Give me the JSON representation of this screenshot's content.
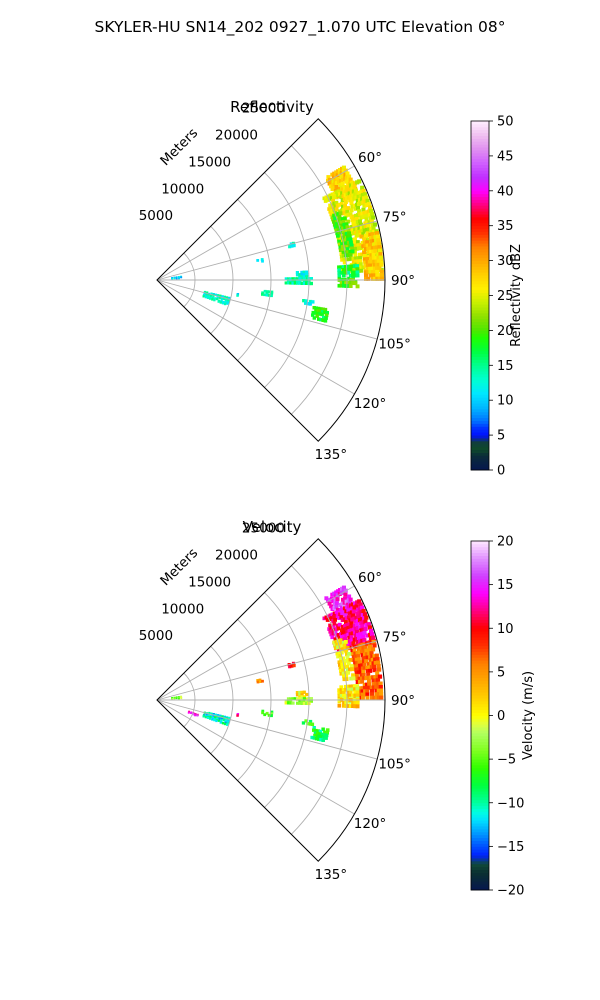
{
  "suptitle": "SKYLER-HU  SN14_202  0927_1.070 UTC Elevation 08°",
  "colors": {
    "background": "#ffffff",
    "grid": "#b0b0b0",
    "frame": "#000000"
  },
  "chart_data": [
    {
      "type": "heatmap",
      "subtype": "polar-sector (PPI radar scan)",
      "title": "Reflectivity",
      "radial_label": "Meters",
      "theta_range_deg": [
        45,
        135
      ],
      "r_range_m": [
        0,
        30000
      ],
      "angle_ticks": [
        "60°",
        "75°",
        "90°",
        "105°",
        "120°",
        "135°"
      ],
      "angle_tick_values": [
        60,
        75,
        90,
        105,
        120,
        135
      ],
      "range_ticks": [
        "5000",
        "10000",
        "15000",
        "20000",
        "25000"
      ],
      "range_tick_values": [
        5000,
        10000,
        15000,
        20000,
        25000
      ],
      "grid": true,
      "colorbar": {
        "label": "Reflectivity dBZ",
        "min": 0,
        "max": 50,
        "ticks": [
          "0",
          "5",
          "10",
          "15",
          "20",
          "25",
          "30",
          "35",
          "40",
          "45",
          "50"
        ],
        "tick_values": [
          0,
          5,
          10,
          15,
          20,
          25,
          30,
          35,
          40,
          45,
          50
        ],
        "colormap": "pyart_NWSRef"
      },
      "echo_regions": [
        {
          "az": [
            59,
            66
          ],
          "r": [
            26000,
            29000
          ],
          "value": 28
        },
        {
          "az": [
            64,
            88
          ],
          "r": [
            24500,
            29700
          ],
          "value": 25
        },
        {
          "az": [
            78,
            90
          ],
          "r": [
            27500,
            29800
          ],
          "value": 28
        },
        {
          "az": [
            70,
            83
          ],
          "r": [
            24500,
            26300
          ],
          "value": 20
        },
        {
          "az": [
            86,
            91
          ],
          "r": [
            24000,
            26500
          ],
          "value": 17
        },
        {
          "az": [
            90,
            92
          ],
          "r": [
            24000,
            26500
          ],
          "value": 20
        },
        {
          "az": [
            87,
            90
          ],
          "r": [
            18500,
            20000
          ],
          "value": 13
        },
        {
          "az": [
            89.5,
            92
          ],
          "r": [
            17000,
            20500
          ],
          "value": 14
        },
        {
          "az": [
            96,
            98
          ],
          "r": [
            14000,
            15500
          ],
          "value": 14
        },
        {
          "az": [
            98,
            99
          ],
          "r": [
            19500,
            21000
          ],
          "value": 13
        },
        {
          "az": [
            100,
            104
          ],
          "r": [
            21000,
            23000
          ],
          "value": 18
        },
        {
          "az": [
            104,
            110
          ],
          "r": [
            6500,
            10000
          ],
          "value": 13
        },
        {
          "az": [
            82,
            86
          ],
          "r": [
            2000,
            3500
          ],
          "value": 10
        },
        {
          "az": [
            79,
            80
          ],
          "r": [
            13500,
            14300
          ],
          "value": 11
        },
        {
          "az": [
            75,
            76
          ],
          "r": [
            18000,
            18700
          ],
          "value": 12
        },
        {
          "az": [
            100,
            101
          ],
          "r": [
            10500,
            11000
          ],
          "value": 12
        }
      ]
    },
    {
      "type": "heatmap",
      "subtype": "polar-sector (PPI radar scan)",
      "title": "Velocity",
      "radial_label": "Meters",
      "theta_range_deg": [
        45,
        135
      ],
      "r_range_m": [
        0,
        30000
      ],
      "angle_ticks": [
        "60°",
        "75°",
        "90°",
        "105°",
        "120°",
        "135°"
      ],
      "angle_tick_values": [
        60,
        75,
        90,
        105,
        120,
        135
      ],
      "range_ticks": [
        "5000",
        "10000",
        "15000",
        "20000",
        "25000"
      ],
      "range_tick_values": [
        5000,
        10000,
        15000,
        20000,
        25000
      ],
      "grid": true,
      "colorbar": {
        "label": "Velocity (m/s)",
        "min": -20,
        "max": 20,
        "ticks": [
          "−20",
          "−15",
          "−10",
          "−5",
          "0",
          "5",
          "10",
          "15",
          "20"
        ],
        "tick_values": [
          -20,
          -15,
          -10,
          -5,
          0,
          5,
          10,
          15,
          20
        ],
        "colormap": "pyart_BuDRd18"
      },
      "echo_regions": [
        {
          "az": [
            59,
            66
          ],
          "r": [
            26000,
            29000
          ],
          "value": 15
        },
        {
          "az": [
            64,
            75
          ],
          "r": [
            24500,
            29700
          ],
          "value": 12
        },
        {
          "az": [
            75,
            90
          ],
          "r": [
            26500,
            29800
          ],
          "value": 7
        },
        {
          "az": [
            72,
            84
          ],
          "r": [
            24500,
            26300
          ],
          "value": 1
        },
        {
          "az": [
            86,
            91
          ],
          "r": [
            24000,
            26500
          ],
          "value": 1
        },
        {
          "az": [
            90,
            92
          ],
          "r": [
            24000,
            26500
          ],
          "value": 2
        },
        {
          "az": [
            87,
            90
          ],
          "r": [
            18500,
            20000
          ],
          "value": 1
        },
        {
          "az": [
            89.5,
            92
          ],
          "r": [
            17000,
            20500
          ],
          "value": -3
        },
        {
          "az": [
            96,
            98
          ],
          "r": [
            14000,
            15500
          ],
          "value": -5
        },
        {
          "az": [
            98,
            99
          ],
          "r": [
            19500,
            21000
          ],
          "value": -6
        },
        {
          "az": [
            100,
            104
          ],
          "r": [
            21000,
            23000
          ],
          "value": -8
        },
        {
          "az": [
            104,
            110
          ],
          "r": [
            6500,
            10000
          ],
          "value": -11
        },
        {
          "az": [
            110,
            112
          ],
          "r": [
            4500,
            5800
          ],
          "value": 14
        },
        {
          "az": [
            82,
            86
          ],
          "r": [
            2000,
            3500
          ],
          "value": -4
        },
        {
          "az": [
            79,
            80
          ],
          "r": [
            13500,
            14300
          ],
          "value": 6
        },
        {
          "az": [
            75,
            76
          ],
          "r": [
            18000,
            18700
          ],
          "value": 10
        },
        {
          "az": [
            100,
            101
          ],
          "r": [
            10500,
            11000
          ],
          "value": 12
        }
      ]
    }
  ]
}
